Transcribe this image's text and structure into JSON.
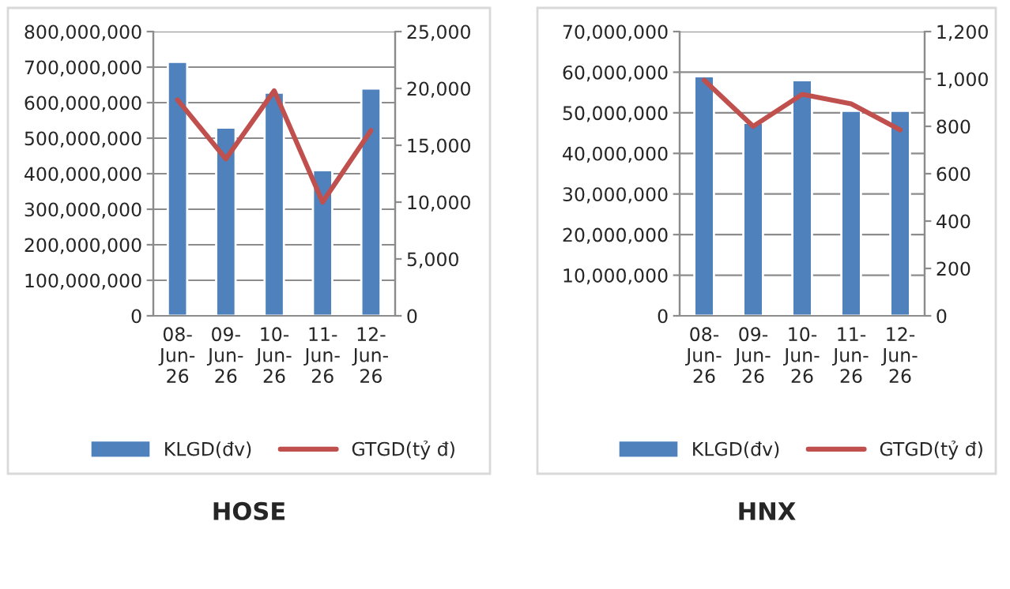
{
  "chart_data": [
    {
      "type": "bar",
      "title": "HOSE",
      "categories": [
        "08-Jun-26",
        "09-Jun-26",
        "10-Jun-26",
        "11-Jun-26",
        "12-Jun-26"
      ],
      "series": [
        {
          "name": "KLGD(đv)",
          "color": "#4f81bd",
          "values": [
            715000000,
            530000000,
            628000000,
            410000000,
            640000000
          ]
        },
        {
          "name": "GTGD(tỷ đ)",
          "type": "line",
          "axis": "y2",
          "color": "#c0504d",
          "values": [
            19000,
            13800,
            19800,
            10000,
            16300
          ]
        }
      ],
      "ylim": [
        0,
        800000000
      ],
      "yticks": [
        {
          "value": 0,
          "label": "0"
        },
        {
          "value": 100000000,
          "label": "100,000,000"
        },
        {
          "value": 200000000,
          "label": "200,000,000"
        },
        {
          "value": 300000000,
          "label": "300,000,000"
        },
        {
          "value": 400000000,
          "label": "400,000,000"
        },
        {
          "value": 500000000,
          "label": "500,000,000"
        },
        {
          "value": 600000000,
          "label": "600,000,000"
        },
        {
          "value": 700000000,
          "label": "700,000,000"
        },
        {
          "value": 800000000,
          "label": "800,000,000"
        }
      ],
      "y2lim": [
        0,
        25000
      ],
      "y2ticks": [
        {
          "value": 0,
          "label": "0"
        },
        {
          "value": 5000,
          "label": "5,000"
        },
        {
          "value": 10000,
          "label": "10,000"
        },
        {
          "value": 15000,
          "label": "15,000"
        },
        {
          "value": 20000,
          "label": "20,000"
        },
        {
          "value": 25000,
          "label": "25,000"
        }
      ],
      "grid": "y",
      "legend": "bottom"
    },
    {
      "type": "bar",
      "title": "HNX",
      "categories": [
        "08-Jun-26",
        "09-Jun-26",
        "10-Jun-26",
        "11-Jun-26",
        "12-Jun-26"
      ],
      "series": [
        {
          "name": "KLGD(đv)",
          "color": "#4f81bd",
          "values": [
            59000000,
            47500000,
            58000000,
            50500000,
            50500000
          ]
        },
        {
          "name": "GTGD(tỷ đ)",
          "type": "line",
          "axis": "y2",
          "color": "#c0504d",
          "values": [
            995,
            800,
            935,
            895,
            785
          ]
        }
      ],
      "ylim": [
        0,
        70000000
      ],
      "yticks": [
        {
          "value": 0,
          "label": "0"
        },
        {
          "value": 10000000,
          "label": "10,000,000"
        },
        {
          "value": 20000000,
          "label": "20,000,000"
        },
        {
          "value": 30000000,
          "label": "30,000,000"
        },
        {
          "value": 40000000,
          "label": "40,000,000"
        },
        {
          "value": 50000000,
          "label": "50,000,000"
        },
        {
          "value": 60000000,
          "label": "60,000,000"
        },
        {
          "value": 70000000,
          "label": "70,000,000"
        }
      ],
      "y2lim": [
        0,
        1200
      ],
      "y2ticks": [
        {
          "value": 0,
          "label": "0"
        },
        {
          "value": 200,
          "label": "200"
        },
        {
          "value": 400,
          "label": "400"
        },
        {
          "value": 600,
          "label": "600"
        },
        {
          "value": 800,
          "label": "800"
        },
        {
          "value": 1000,
          "label": "1,000"
        },
        {
          "value": 1200,
          "label": "1,200"
        }
      ],
      "grid": "y",
      "legend": "bottom"
    }
  ]
}
